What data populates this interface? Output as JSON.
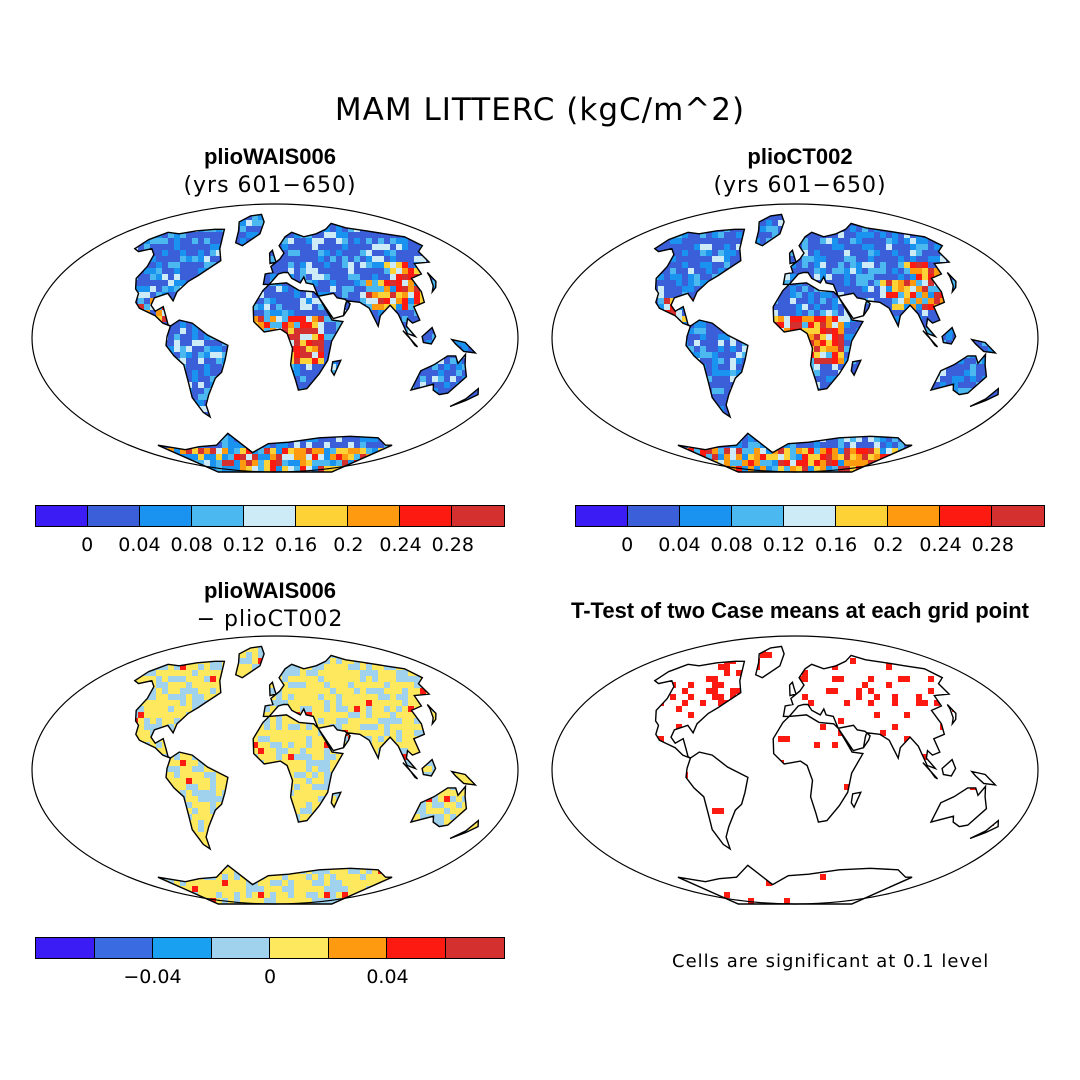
{
  "figure": {
    "title": "MAM LITTERC (kgC/m^2)"
  },
  "panels": [
    {
      "id": "p1",
      "title": "plioWAIS006",
      "subtitle": "(yrs 601−650)"
    },
    {
      "id": "p2",
      "title": "plioCT002",
      "subtitle": "(yrs 601−650)"
    },
    {
      "id": "p3",
      "title": "plioWAIS006",
      "subtitle": "− plioCT002"
    },
    {
      "id": "p4",
      "title": "T-Test of two Case means at each grid point",
      "subtitle": ""
    }
  ],
  "colorbars": {
    "absolute": {
      "colors": [
        "#3b1cf5",
        "#3a5fd9",
        "#1a93f0",
        "#4cb8f0",
        "#cdeaf7",
        "#fcd237",
        "#fe9a10",
        "#fd1a10",
        "#d4302f"
      ],
      "ticks": [
        "0",
        "0.04",
        "0.08",
        "0.12",
        "0.16",
        "0.2",
        "0.24",
        "0.28"
      ]
    },
    "difference": {
      "colors": [
        "#3b1cf5",
        "#3a6be0",
        "#1aa0f0",
        "#a0d2ee",
        "#fee85d",
        "#fe9a10",
        "#fd1a10",
        "#d4302f"
      ],
      "ticks": [
        "−0.04",
        "0",
        "0.04"
      ]
    }
  },
  "note": "Cells are significant at 0.1 level",
  "map_colors": {
    "ocean": "#ffffff",
    "land_low": "#3a5fd9",
    "land_mid": "#4cb8f0",
    "land_high": "#fd1a10",
    "diff_pos": "#fee85d",
    "diff_neg": "#a0d2ee",
    "signif": "#fd1a10"
  }
}
